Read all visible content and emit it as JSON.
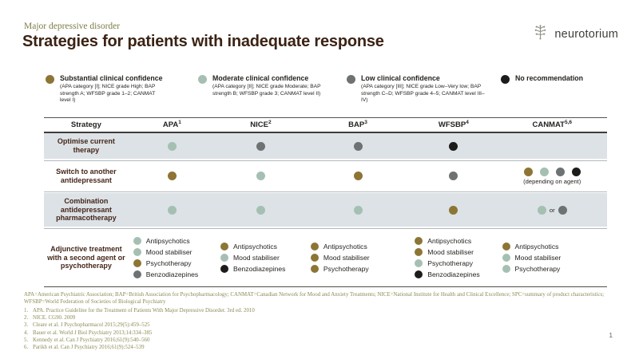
{
  "page": {
    "eyebrow": "Major depressive disorder",
    "title": "Strategies for patients with inadequate response",
    "page_number": "1"
  },
  "logo": {
    "text": "neurotorium",
    "icon": "brain-icon"
  },
  "colors": {
    "substantial": "#8D7535",
    "moderate": "#A5C0B3",
    "low": "#6E7273",
    "none": "#1C1C1A"
  },
  "legend": [
    {
      "key": "substantial",
      "label": "Substantial clinical confidence",
      "detail": "(APA category [I]; NICE grade High; BAP strength A; WFSBP grade 1–2; CANMAT level I)"
    },
    {
      "key": "moderate",
      "label": "Moderate clinical confidence",
      "detail": "(APA category [II]; NICE grade Moderate; BAP strength B; WFSBP grade 3; CANMAT level II)"
    },
    {
      "key": "low",
      "label": "Low clinical confidence",
      "detail": "(APA category [III]; NICE grade Low–Very low; BAP strength C–D; WFSBP grade 4–5; CANMAT level III–IV)"
    },
    {
      "key": "none",
      "label": "No recommendation",
      "detail": ""
    }
  ],
  "table": {
    "headers": [
      {
        "label": "Strategy",
        "sup": ""
      },
      {
        "label": "APA",
        "sup": "1"
      },
      {
        "label": "NICE",
        "sup": "2"
      },
      {
        "label": "BAP",
        "sup": "3"
      },
      {
        "label": "WFSBP",
        "sup": "4"
      },
      {
        "label": "CANMAT",
        "sup": "5,6"
      }
    ],
    "rows": [
      {
        "label": "Optimise current therapy",
        "striped": true,
        "cells": [
          {
            "type": "dots",
            "dots": [
              "moderate"
            ]
          },
          {
            "type": "dots",
            "dots": [
              "low"
            ]
          },
          {
            "type": "dots",
            "dots": [
              "low"
            ]
          },
          {
            "type": "dots",
            "dots": [
              "none"
            ]
          },
          {
            "type": "empty"
          }
        ]
      },
      {
        "label": "Switch to another antidepressant",
        "striped": false,
        "cells": [
          {
            "type": "dots",
            "dots": [
              "substantial"
            ]
          },
          {
            "type": "dots",
            "dots": [
              "moderate"
            ]
          },
          {
            "type": "dots",
            "dots": [
              "substantial"
            ]
          },
          {
            "type": "dots",
            "dots": [
              "low"
            ]
          },
          {
            "type": "dots",
            "dots": [
              "substantial",
              "moderate",
              "low",
              "none"
            ],
            "caption": "(depending on agent)"
          }
        ]
      },
      {
        "label": "Combination antidepressant pharmacotherapy",
        "striped": true,
        "cells": [
          {
            "type": "dots",
            "dots": [
              "moderate"
            ]
          },
          {
            "type": "dots",
            "dots": [
              "moderate"
            ]
          },
          {
            "type": "dots",
            "dots": [
              "moderate"
            ]
          },
          {
            "type": "dots",
            "dots": [
              "substantial"
            ]
          },
          {
            "type": "dot-or",
            "dots": [
              "moderate",
              "low"
            ],
            "separator": "or"
          }
        ]
      },
      {
        "label": "Adjunctive treatment with a second agent or psychotherapy",
        "striped": false,
        "cells": [
          {
            "type": "list",
            "items": [
              {
                "dot": "moderate",
                "label": "Antipsychotics"
              },
              {
                "dot": "moderate",
                "label": "Mood stabiliser"
              },
              {
                "dot": "substantial",
                "label": "Psychotherapy"
              },
              {
                "dot": "low",
                "label": "Benzodiazepines"
              }
            ]
          },
          {
            "type": "list",
            "items": [
              {
                "dot": "substantial",
                "label": "Antipsychotics"
              },
              {
                "dot": "moderate",
                "label": "Mood stabiliser"
              },
              {
                "dot": "none",
                "label": "Benzodiazepines"
              }
            ]
          },
          {
            "type": "list",
            "items": [
              {
                "dot": "substantial",
                "label": "Antipsychotics"
              },
              {
                "dot": "substantial",
                "label": "Mood stabiliser"
              },
              {
                "dot": "substantial",
                "label": "Psychotherapy"
              }
            ]
          },
          {
            "type": "list",
            "items": [
              {
                "dot": "substantial",
                "label": "Antipsychotics"
              },
              {
                "dot": "substantial",
                "label": "Mood stabiliser"
              },
              {
                "dot": "moderate",
                "label": "Psychotherapy"
              },
              {
                "dot": "none",
                "label": "Benzodiazepines"
              }
            ]
          },
          {
            "type": "list",
            "items": [
              {
                "dot": "substantial",
                "label": "Antipsychotics"
              },
              {
                "dot": "moderate",
                "label": "Mood stabiliser"
              },
              {
                "dot": "moderate",
                "label": "Psychotherapy"
              }
            ]
          }
        ]
      }
    ]
  },
  "footnotes": {
    "abbreviations": "APA=American Psychiatric Association; BAP=British Association for Psychopharmacology; CANMAT=Canadian Network for Mood and Anxiety Treatments; NICE=National Institute for Health and Clinical Excellence; SPC=summary of product characteristics; WFSBP=World Federation of Societies of Biological Psychiatry",
    "references": [
      {
        "num": "1.",
        "text": "APA. Practice Guideline for the Treatment of Patients With Major Depressive Disorder. 3rd ed. 2010"
      },
      {
        "num": "2.",
        "text": "NICE. CG90. 2009"
      },
      {
        "num": "3.",
        "text": "Cleare et al. J Psychopharmacol 2015;29(5):459–525"
      },
      {
        "num": "4.",
        "text": "Bauer et al. World J Biol Psychiatry 2013;14:334–385"
      },
      {
        "num": "5.",
        "text": "Kennedy et al. Can J Psychiatry 2016;61(9):540–560"
      },
      {
        "num": "6.",
        "text": "Parikh et al. Can J Psychiatry 2016;61(9):524–539"
      }
    ]
  }
}
